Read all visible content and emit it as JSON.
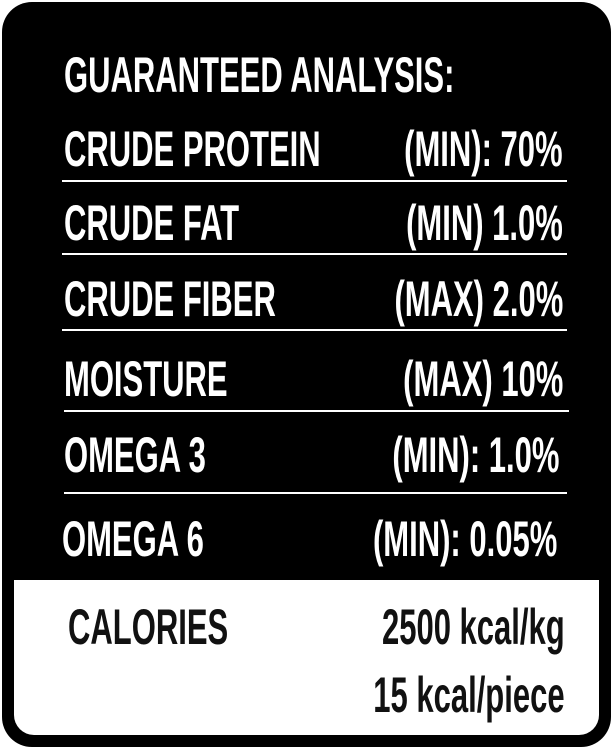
{
  "title": "GUARANTEED ANALYSIS:",
  "rows": [
    {
      "name": "CRUDE PROTEIN",
      "value": "(MIN): 70%"
    },
    {
      "name": "CRUDE FAT",
      "value": "(MIN) 1.0%"
    },
    {
      "name": "CRUDE FIBER",
      "value": "(MAX) 2.0%"
    },
    {
      "name": "MOISTURE",
      "value": "(MAX) 10%"
    },
    {
      "name": "OMEGA 3",
      "value": "(MIN): 1.0%"
    },
    {
      "name": "OMEGA 6",
      "value": "(MIN): 0.05%"
    }
  ],
  "calories": {
    "label": "CALORIES",
    "per_kg": "2500 kcal/kg",
    "per_piece": "15 kcal/piece"
  },
  "colors": {
    "background": "#000000",
    "text": "#ffffff",
    "calorie_panel": "#ffffff"
  }
}
